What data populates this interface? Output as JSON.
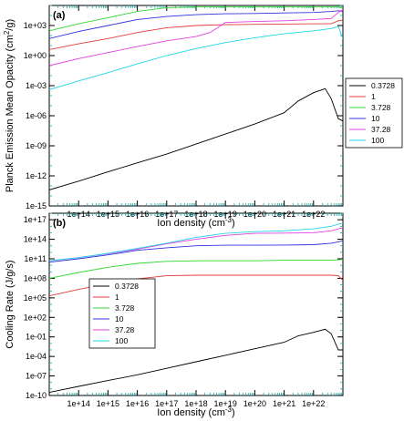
{
  "colors": {
    "0.3728": "#000000",
    "1": "#e23b3b",
    "3.728": "#2fd62f",
    "10": "#3030e0",
    "37.28": "#e040e0",
    "100": "#1ed6e6"
  },
  "chart_data": [
    {
      "type": "line",
      "panel_label": "(a)",
      "xlabel": "Ion density (cm⁻³)",
      "ylabel": "Planck Emission Mean Opacity (cm²/g)",
      "xscale": "log",
      "yscale": "log",
      "xlim": [
        10000000000000.0,
        1e+23
      ],
      "ylim": [
        1e-15,
        100000.0
      ],
      "xticks": [
        "1e+14",
        "1e+15",
        "1e+16",
        "1e+17",
        "1e+18",
        "1e+19",
        "1e+20",
        "1e+21",
        "1e+22"
      ],
      "yticks": [
        "1e-15",
        "1e-12",
        "1e-09",
        "1e-06",
        "1e-03",
        "1e+00",
        "1e+03"
      ],
      "legend_position": "right",
      "series": [
        {
          "name": "0.3728",
          "x": [
            10000000000000.0,
            100000000000000.0,
            1000000000000000.0,
            1e+16,
            1e+17,
            1e+18,
            1e+19,
            1e+20,
            1e+21,
            3e+21,
            1e+22,
            2.5e+22,
            4e+22,
            7e+22,
            1e+23
          ],
          "y": [
            4e-14,
            3e-13,
            2.5e-12,
            2e-11,
            1.5e-10,
            1.5e-09,
            1.5e-08,
            1.5e-07,
            2e-06,
            3e-05,
            0.0002,
            0.0005,
            5e-05,
            5e-07,
            3e-07
          ]
        },
        {
          "name": "1",
          "x": [
            10000000000000.0,
            100000000000000.0,
            1000000000000000.0,
            1e+16,
            1e+17,
            1e+18,
            1e+19,
            1e+20,
            1e+21,
            1e+22,
            4e+22,
            7e+22,
            1e+23
          ],
          "y": [
            4,
            15,
            50,
            200,
            600,
            1000,
            1200,
            1300,
            1400,
            1500,
            1500,
            3000,
            3500
          ]
        },
        {
          "name": "3.728",
          "x": [
            10000000000000.0,
            100000000000000.0,
            1000000000000000.0,
            1e+16,
            1e+17,
            1e+18,
            1e+19,
            1e+20,
            1e+21,
            1e+22,
            4e+22,
            7e+22,
            1e+23
          ],
          "y": [
            300,
            1500,
            6000,
            25000,
            60000,
            70000,
            70000,
            70000,
            70000,
            70000,
            70000,
            70000,
            60000
          ]
        },
        {
          "name": "10",
          "x": [
            10000000000000.0,
            100000000000000.0,
            1000000000000000.0,
            1e+16,
            1e+17,
            1e+18,
            1e+19,
            1e+20,
            1e+21,
            1e+22,
            4e+22,
            7e+22,
            1e+23
          ],
          "y": [
            50,
            250,
            1000,
            4000,
            8000,
            12000,
            15000,
            16000,
            18000,
            20000,
            25000,
            30000,
            25000
          ]
        },
        {
          "name": "37.28",
          "x": [
            10000000000000.0,
            100000000000000.0,
            1000000000000000.0,
            1e+16,
            1e+17,
            1e+18,
            3e+18,
            1e+19,
            1e+20,
            1e+21,
            1e+22,
            4e+22,
            7e+22,
            1e+23
          ],
          "y": [
            0.1,
            0.5,
            2,
            8,
            30,
            80,
            200,
            2000,
            2500,
            3000,
            4000,
            5000,
            20000,
            40000
          ]
        },
        {
          "name": "100",
          "x": [
            10000000000000.0,
            100000000000000.0,
            1000000000000000.0,
            1e+16,
            1e+17,
            1e+18,
            1e+19,
            1e+20,
            1e+21,
            1e+22,
            4e+22,
            7e+22,
            1e+23
          ],
          "y": [
            0.0004,
            0.003,
            0.02,
            0.15,
            1,
            5,
            20,
            60,
            150,
            300,
            500,
            800,
            50
          ]
        }
      ]
    },
    {
      "type": "line",
      "panel_label": "(b)",
      "xlabel": "Ion density (cm⁻³)",
      "ylabel": "Cooling Rate (J/g/s)",
      "xscale": "log",
      "yscale": "log",
      "xlim": [
        10000000000000.0,
        1e+23
      ],
      "ylim": [
        1e-10,
        1e+18
      ],
      "xticks": [
        "1e+14",
        "1e+15",
        "1e+16",
        "1e+17",
        "1e+18",
        "1e+19",
        "1e+20",
        "1e+21",
        "1e+22"
      ],
      "yticks": [
        "1e-10",
        "1e-07",
        "1e-04",
        "1e-01",
        "1e+02",
        "1e+05",
        "1e+08",
        "1e+11",
        "1e+14",
        "1e+17"
      ],
      "legend_position": "center-left",
      "series": [
        {
          "name": "0.3728",
          "x": [
            10000000000000.0,
            100000000000000.0,
            1000000000000000.0,
            1e+16,
            1e+17,
            1e+18,
            1e+19,
            1e+20,
            1e+21,
            3e+21,
            1e+22,
            2.5e+22,
            4e+22,
            7e+22,
            1e+23
          ],
          "y": [
            3e-10,
            2.5e-09,
            2e-08,
            1.5e-07,
            1.5e-06,
            1.5e-05,
            0.00015,
            0.0015,
            0.015,
            0.15,
            0.5,
            1.5,
            0.3,
            0.001,
            0.001
          ]
        },
        {
          "name": "1",
          "x": [
            10000000000000.0,
            100000000000000.0,
            1000000000000000.0,
            1e+16,
            1e+17,
            1e+18,
            1e+19,
            1e+20,
            1e+21,
            1e+22,
            4e+22,
            7e+22,
            1e+23
          ],
          "y": [
            200000.0,
            2000000.0,
            15000000.0,
            80000000.0,
            250000000.0,
            300000000.0,
            300000000.0,
            300000000.0,
            300000000.0,
            300000000.0,
            300000000.0,
            250000000.0,
            50000000.0
          ]
        },
        {
          "name": "3.728",
          "x": [
            10000000000000.0,
            100000000000000.0,
            1000000000000000.0,
            1e+16,
            1e+17,
            1e+18,
            1e+19,
            1e+20,
            1e+21,
            1e+22,
            4e+22,
            7e+22,
            1e+23
          ],
          "y": [
            100000000.0,
            800000000.0,
            5000000000.0,
            20000000000.0,
            40000000000.0,
            50000000000.0,
            50000000000.0,
            50000000000.0,
            60000000000.0,
            60000000000.0,
            60000000000.0,
            70000000000.0,
            80000000000.0
          ]
        },
        {
          "name": "10",
          "x": [
            10000000000000.0,
            100000000000000.0,
            1000000000000000.0,
            1e+16,
            1e+17,
            1e+18,
            1e+19,
            1e+20,
            1e+21,
            1e+22,
            4e+22,
            7e+22,
            1e+23
          ],
          "y": [
            30000000000.0,
            100000000000.0,
            400000000000.0,
            2000000000000.0,
            5000000000000.0,
            10000000000000.0,
            12000000000000.0,
            12000000000000.0,
            13000000000000.0,
            15000000000000.0,
            25000000000000.0,
            40000000000000.0,
            60000000000000.0
          ]
        },
        {
          "name": "37.28",
          "x": [
            10000000000000.0,
            100000000000000.0,
            1000000000000000.0,
            1e+16,
            1e+17,
            1e+18,
            1e+19,
            1e+20,
            1e+21,
            1e+22,
            4e+22,
            7e+22,
            1e+23
          ],
          "y": [
            50000000000.0,
            150000000000.0,
            600000000000.0,
            3000000000000.0,
            20000000000000.0,
            100000000000000.0,
            400000000000000.0,
            800000000000000.0,
            900000000000000.0,
            1000000000000000.0,
            2000000000000000.0,
            4000000000000000.0,
            6000000000000000.0
          ]
        },
        {
          "name": "100",
          "x": [
            10000000000000.0,
            100000000000000.0,
            1000000000000000.0,
            1e+16,
            1e+17,
            1e+18,
            1e+19,
            1e+20,
            1e+21,
            1e+22,
            4e+22,
            7e+22,
            1e+23
          ],
          "y": [
            50000000000.0,
            150000000000.0,
            700000000000.0,
            4000000000000.0,
            25000000000000.0,
            200000000000000.0,
            800000000000000.0,
            1500000000000000.0,
            2000000000000000.0,
            4000000000000000.0,
            1e+16,
            2e+16,
            3e+16
          ]
        }
      ]
    }
  ]
}
